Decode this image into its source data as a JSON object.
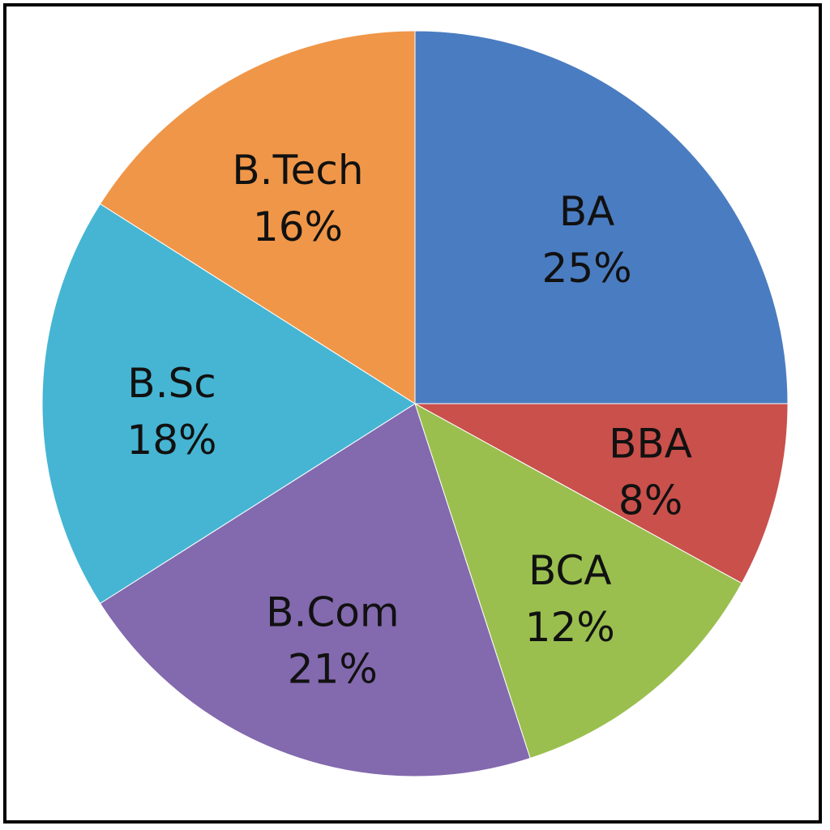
{
  "chart_data": {
    "type": "pie",
    "title": "",
    "start_angle_deg": 0,
    "direction": "clockwise-from-top",
    "slices": [
      {
        "label": "BA",
        "value": 25,
        "value_label": "25%",
        "color": "#4A7CC1"
      },
      {
        "label": "BBA",
        "value": 8,
        "value_label": "8%",
        "color": "#C9504B"
      },
      {
        "label": "BCA",
        "value": 12,
        "value_label": "12%",
        "color": "#9ABF4F"
      },
      {
        "label": "B.Com",
        "value": 21,
        "value_label": "21%",
        "color": "#8369AE"
      },
      {
        "label": "B.Sc",
        "value": 18,
        "value_label": "18%",
        "color": "#46B5D3"
      },
      {
        "label": "B.Tech",
        "value": 16,
        "value_label": "16%",
        "color": "#F09648"
      }
    ],
    "legend": "none"
  }
}
